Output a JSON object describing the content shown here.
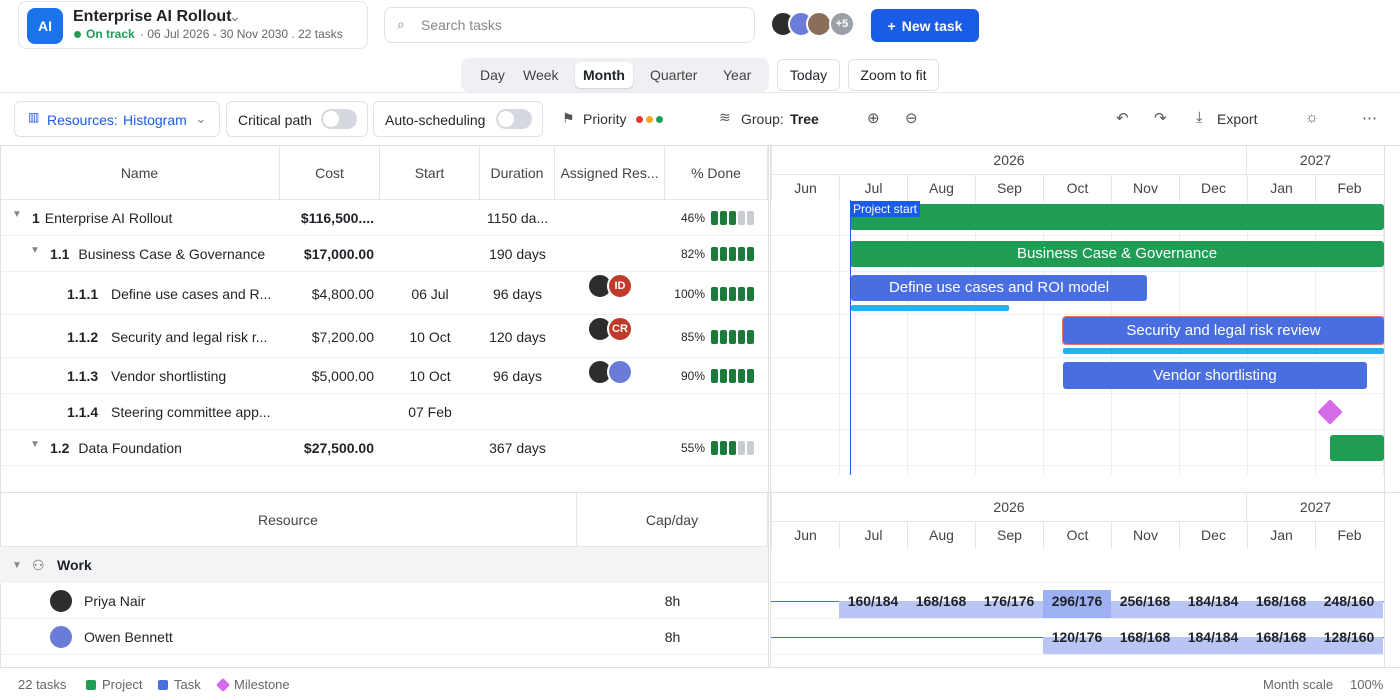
{
  "header": {
    "logo": "AI",
    "project": "Enterprise AI Rollout",
    "status": "On track",
    "meta": "· 06 Jul 2026 - 30 Nov 2030 . 22 tasks",
    "search": "Search tasks",
    "more_people": "+5",
    "new_task": "New task"
  },
  "views": {
    "options": [
      "Day",
      "Week",
      "Month",
      "Quarter",
      "Year"
    ],
    "active": "Month",
    "actions": [
      "Today",
      "Zoom to fit"
    ]
  },
  "toolbar": {
    "resources_label": "Resources:",
    "resources_value": "Histogram",
    "critical_path": "Critical path",
    "auto_scheduling": "Auto-scheduling",
    "priority": "Priority",
    "group_label": "Group:",
    "group_value": "Tree",
    "export": "Export"
  },
  "grid": {
    "columns": [
      "Name",
      "Cost",
      "Start",
      "Duration",
      "Assigned Res...",
      "% Done"
    ],
    "rows": [
      {
        "num": "1",
        "name": "Enterprise AI Rollout",
        "cost": "$116,500....",
        "duration": "1150 da...",
        "done": 46,
        "done_label": "46%",
        "type": "project",
        "bar_label": "Project start"
      },
      {
        "num": "1.1",
        "name": "Business Case & Governance",
        "cost": "$17,000.00",
        "duration": "190 days",
        "done": 82,
        "done_label": "82%",
        "type": "project",
        "bar_label": "Business Case & Governance"
      },
      {
        "num": "1.1.1",
        "name": "Define use cases and R...",
        "cost": "$4,800.00",
        "start": "06 Jul",
        "duration": "96 days",
        "assignees": [
          null,
          "ID"
        ],
        "done": 100,
        "done_label": "100%",
        "type": "task",
        "bar_label": "Define use cases and ROI model"
      },
      {
        "num": "1.1.2",
        "name": "Security and legal risk r...",
        "cost": "$7,200.00",
        "start": "10 Oct",
        "duration": "120 days",
        "assignees": [
          null,
          "CR"
        ],
        "done": 85,
        "done_label": "85%",
        "type": "task",
        "bar_label": "Security and legal risk review"
      },
      {
        "num": "1.1.3",
        "name": "Vendor shortlisting",
        "cost": "$5,000.00",
        "start": "10 Oct",
        "duration": "96 days",
        "assignees": [
          null,
          null
        ],
        "done": 90,
        "done_label": "90%",
        "type": "task",
        "bar_label": "Vendor shortlisting"
      },
      {
        "num": "1.1.4",
        "name": "Steering committee app...",
        "start": "07 Feb",
        "type": "milestone"
      },
      {
        "num": "1.2",
        "name": "Data Foundation",
        "cost": "$27,500.00",
        "duration": "367 days",
        "done": 55,
        "done_label": "55%",
        "type": "project"
      }
    ]
  },
  "timeline": {
    "years": [
      "2026",
      "2027"
    ],
    "months": [
      "Jun",
      "Jul",
      "Aug",
      "Sep",
      "Oct",
      "Nov",
      "Dec",
      "Jan",
      "Feb"
    ]
  },
  "resources": {
    "columns": [
      "Resource",
      "Cap/day"
    ],
    "group": "Work",
    "people": [
      {
        "name": "Priya Nair",
        "cap": "8h",
        "loads": [
          null,
          "160/184",
          "168/168",
          "176/176",
          "296/176",
          "256/168",
          "184/184",
          "168/168",
          "248/160"
        ]
      },
      {
        "name": "Owen Bennett",
        "cap": "8h",
        "loads": [
          null,
          null,
          null,
          null,
          "120/176",
          "168/168",
          "184/184",
          "168/168",
          "128/160"
        ]
      }
    ]
  },
  "footer": {
    "count": "22 tasks",
    "legend": [
      "Project",
      "Task",
      "Milestone"
    ],
    "scale": "Month scale",
    "zoom": "100%"
  }
}
